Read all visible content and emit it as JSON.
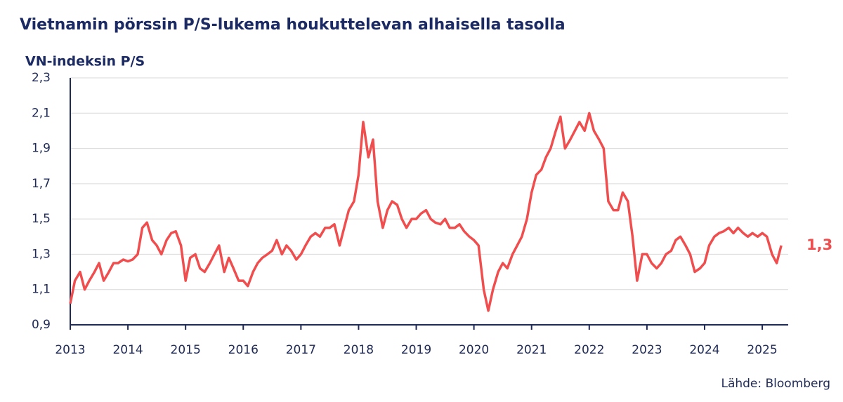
{
  "chart_data": {
    "type": "line",
    "title": "Vietnamin pörssin P/S-lukema houkuttelevan alhaisella tasolla",
    "y_label": "VN-indeksin P/S",
    "source": "Lähde: Bloomberg",
    "color": "#f04e4e",
    "x": [
      2013,
      2013.08,
      2013.17,
      2013.25,
      2013.33,
      2013.42,
      2013.5,
      2013.58,
      2013.67,
      2013.75,
      2013.83,
      2013.92,
      2014,
      2014.08,
      2014.17,
      2014.25,
      2014.33,
      2014.42,
      2014.5,
      2014.58,
      2014.67,
      2014.75,
      2014.83,
      2014.92,
      2015,
      2015.08,
      2015.17,
      2015.25,
      2015.33,
      2015.42,
      2015.5,
      2015.58,
      2015.67,
      2015.75,
      2015.83,
      2015.92,
      2016,
      2016.08,
      2016.17,
      2016.25,
      2016.33,
      2016.42,
      2016.5,
      2016.58,
      2016.67,
      2016.75,
      2016.83,
      2016.92,
      2017,
      2017.08,
      2017.17,
      2017.25,
      2017.33,
      2017.42,
      2017.5,
      2017.58,
      2017.67,
      2017.75,
      2017.83,
      2017.92,
      2018,
      2018.08,
      2018.17,
      2018.25,
      2018.33,
      2018.42,
      2018.5,
      2018.58,
      2018.67,
      2018.75,
      2018.83,
      2018.92,
      2019,
      2019.08,
      2019.17,
      2019.25,
      2019.33,
      2019.42,
      2019.5,
      2019.58,
      2019.67,
      2019.75,
      2019.83,
      2019.92,
      2020,
      2020.08,
      2020.17,
      2020.25,
      2020.33,
      2020.42,
      2020.5,
      2020.58,
      2020.67,
      2020.75,
      2020.83,
      2020.92,
      2021,
      2021.08,
      2021.17,
      2021.25,
      2021.33,
      2021.42,
      2021.5,
      2021.58,
      2021.67,
      2021.75,
      2021.83,
      2021.92,
      2022,
      2022.08,
      2022.17,
      2022.25,
      2022.33,
      2022.42,
      2022.5,
      2022.58,
      2022.67,
      2022.75,
      2022.83,
      2022.92,
      2023,
      2023.08,
      2023.17,
      2023.25,
      2023.33,
      2023.42,
      2023.5,
      2023.58,
      2023.67,
      2023.75,
      2023.83,
      2023.92,
      2024,
      2024.08,
      2024.17,
      2024.25,
      2024.33,
      2024.42,
      2024.5,
      2024.58,
      2024.67,
      2024.75,
      2024.83,
      2024.92,
      2025,
      2025.08,
      2025.17,
      2025.25,
      2025.33
    ],
    "values": [
      1.02,
      1.15,
      1.2,
      1.1,
      1.15,
      1.2,
      1.25,
      1.15,
      1.2,
      1.25,
      1.25,
      1.27,
      1.26,
      1.27,
      1.3,
      1.45,
      1.48,
      1.38,
      1.35,
      1.3,
      1.38,
      1.42,
      1.43,
      1.35,
      1.15,
      1.28,
      1.3,
      1.22,
      1.2,
      1.25,
      1.3,
      1.35,
      1.2,
      1.28,
      1.22,
      1.15,
      1.15,
      1.12,
      1.2,
      1.25,
      1.28,
      1.3,
      1.32,
      1.38,
      1.3,
      1.35,
      1.32,
      1.27,
      1.3,
      1.35,
      1.4,
      1.42,
      1.4,
      1.45,
      1.45,
      1.47,
      1.35,
      1.45,
      1.55,
      1.6,
      1.75,
      2.05,
      1.85,
      1.95,
      1.6,
      1.45,
      1.55,
      1.6,
      1.58,
      1.5,
      1.45,
      1.5,
      1.5,
      1.53,
      1.55,
      1.5,
      1.48,
      1.47,
      1.5,
      1.45,
      1.45,
      1.47,
      1.43,
      1.4,
      1.38,
      1.35,
      1.1,
      0.98,
      1.1,
      1.2,
      1.25,
      1.22,
      1.3,
      1.35,
      1.4,
      1.5,
      1.65,
      1.75,
      1.78,
      1.85,
      1.9,
      2.0,
      2.08,
      1.9,
      1.95,
      2.0,
      2.05,
      2.0,
      2.1,
      2.0,
      1.95,
      1.9,
      1.6,
      1.55,
      1.55,
      1.65,
      1.6,
      1.4,
      1.15,
      1.3,
      1.3,
      1.25,
      1.22,
      1.25,
      1.3,
      1.32,
      1.38,
      1.4,
      1.35,
      1.3,
      1.2,
      1.22,
      1.25,
      1.35,
      1.4,
      1.42,
      1.43,
      1.45,
      1.42,
      1.45,
      1.42,
      1.4,
      1.42,
      1.4,
      1.42,
      1.4,
      1.3,
      1.25,
      1.35
    ],
    "annotation": {
      "text": "1,3",
      "value": 1.3
    },
    "xlim": [
      2013,
      2025.45
    ],
    "xticks": [
      2013,
      2014,
      2015,
      2016,
      2017,
      2018,
      2019,
      2020,
      2021,
      2022,
      2023,
      2024,
      2025
    ],
    "ylim": [
      0.9,
      2.3
    ],
    "yticks": [
      {
        "value": 0.9,
        "label": "0,9"
      },
      {
        "value": 1.1,
        "label": "1,1"
      },
      {
        "value": 1.3,
        "label": "1,3"
      },
      {
        "value": 1.5,
        "label": "1,5"
      },
      {
        "value": 1.7,
        "label": "1,7"
      },
      {
        "value": 1.9,
        "label": "1,9"
      },
      {
        "value": 2.1,
        "label": "2,1"
      },
      {
        "value": 2.3,
        "label": "2,3"
      }
    ],
    "grid": true
  }
}
